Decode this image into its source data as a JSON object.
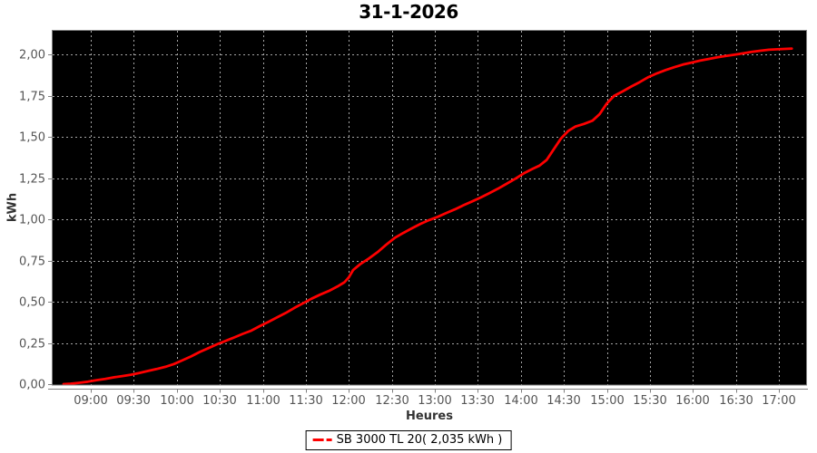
{
  "chart_data": {
    "type": "line",
    "title": "31-1-2026",
    "xlabel": "Heures",
    "ylabel": "kWh",
    "legend_label": "SB 3000 TL 20( 2,035 kWh )",
    "legend_position": "bottom",
    "grid": true,
    "x_range": [
      "08:34",
      "17:19"
    ],
    "ylim": [
      0,
      2.15
    ],
    "x_ticks": [
      "09:00",
      "09:30",
      "10:00",
      "10:30",
      "11:00",
      "11:30",
      "12:00",
      "12:30",
      "13:00",
      "13:30",
      "14:00",
      "14:30",
      "15:00",
      "15:30",
      "16:00",
      "16:30",
      "17:00"
    ],
    "y_ticks": [
      {
        "label": "0,00",
        "value": 0
      },
      {
        "label": "0,25",
        "value": 0.25
      },
      {
        "label": "0,50",
        "value": 0.5
      },
      {
        "label": "0,75",
        "value": 0.75
      },
      {
        "label": "1,00",
        "value": 1
      },
      {
        "label": "1,25",
        "value": 1.25
      },
      {
        "label": "1,50",
        "value": 1.5
      },
      {
        "label": "1,75",
        "value": 1.75
      },
      {
        "label": "2,00",
        "value": 2
      }
    ],
    "colors": {
      "plot_background": "#000000",
      "grid": "#a6a6a6",
      "axis": "#808080",
      "tick_label": "#555555",
      "title": "#000000",
      "series": "#fe0000"
    },
    "series": [
      {
        "name": "SB 3000 TL 20",
        "total_label": "2,035 kWh",
        "color": "#fe0000",
        "points": [
          [
            "08:41",
            0
          ],
          [
            "08:46",
            0.003
          ],
          [
            "08:52",
            0.008
          ],
          [
            "08:58",
            0.015
          ],
          [
            "09:04",
            0.024
          ],
          [
            "09:10",
            0.032
          ],
          [
            "09:16",
            0.041
          ],
          [
            "09:22",
            0.049
          ],
          [
            "09:28",
            0.057
          ],
          [
            "09:34",
            0.068
          ],
          [
            "09:40",
            0.08
          ],
          [
            "09:46",
            0.092
          ],
          [
            "09:52",
            0.105
          ],
          [
            "09:58",
            0.122
          ],
          [
            "10:04",
            0.145
          ],
          [
            "10:10",
            0.168
          ],
          [
            "10:16",
            0.195
          ],
          [
            "10:22",
            0.218
          ],
          [
            "10:28",
            0.242
          ],
          [
            "10:34",
            0.262
          ],
          [
            "10:40",
            0.283
          ],
          [
            "10:46",
            0.305
          ],
          [
            "10:52",
            0.325
          ],
          [
            "10:58",
            0.352
          ],
          [
            "11:04",
            0.378
          ],
          [
            "11:10",
            0.405
          ],
          [
            "11:16",
            0.432
          ],
          [
            "11:22",
            0.462
          ],
          [
            "11:28",
            0.49
          ],
          [
            "11:34",
            0.518
          ],
          [
            "11:40",
            0.543
          ],
          [
            "11:46",
            0.565
          ],
          [
            "11:52",
            0.592
          ],
          [
            "11:57",
            0.618
          ],
          [
            "12:00",
            0.648
          ],
          [
            "12:03",
            0.692
          ],
          [
            "12:08",
            0.728
          ],
          [
            "12:14",
            0.762
          ],
          [
            "12:20",
            0.8
          ],
          [
            "12:26",
            0.845
          ],
          [
            "12:32",
            0.887
          ],
          [
            "12:38",
            0.917
          ],
          [
            "12:44",
            0.945
          ],
          [
            "12:50",
            0.972
          ],
          [
            "12:56",
            0.995
          ],
          [
            "13:02",
            1.015
          ],
          [
            "13:08",
            1.038
          ],
          [
            "13:14",
            1.06
          ],
          [
            "13:20",
            1.085
          ],
          [
            "13:26",
            1.108
          ],
          [
            "13:32",
            1.132
          ],
          [
            "13:38",
            1.158
          ],
          [
            "13:44",
            1.185
          ],
          [
            "13:50",
            1.215
          ],
          [
            "13:56",
            1.245
          ],
          [
            "14:02",
            1.278
          ],
          [
            "14:08",
            1.305
          ],
          [
            "14:13",
            1.325
          ],
          [
            "14:18",
            1.36
          ],
          [
            "14:23",
            1.425
          ],
          [
            "14:28",
            1.49
          ],
          [
            "14:33",
            1.535
          ],
          [
            "14:38",
            1.562
          ],
          [
            "14:44",
            1.578
          ],
          [
            "14:50",
            1.598
          ],
          [
            "14:55",
            1.638
          ],
          [
            "15:00",
            1.702
          ],
          [
            "15:05",
            1.748
          ],
          [
            "15:11",
            1.775
          ],
          [
            "15:17",
            1.805
          ],
          [
            "15:23",
            1.832
          ],
          [
            "15:29",
            1.862
          ],
          [
            "15:35",
            1.885
          ],
          [
            "15:41",
            1.905
          ],
          [
            "15:47",
            1.922
          ],
          [
            "15:53",
            1.938
          ],
          [
            "15:59",
            1.95
          ],
          [
            "16:05",
            1.962
          ],
          [
            "16:11",
            1.972
          ],
          [
            "16:17",
            1.982
          ],
          [
            "16:23",
            1.99
          ],
          [
            "16:29",
            1.998
          ],
          [
            "16:35",
            2.006
          ],
          [
            "16:41",
            2.015
          ],
          [
            "16:47",
            2.022
          ],
          [
            "16:53",
            2.028
          ],
          [
            "16:59",
            2.031
          ],
          [
            "17:04",
            2.033
          ],
          [
            "17:09",
            2.035
          ]
        ]
      }
    ]
  }
}
